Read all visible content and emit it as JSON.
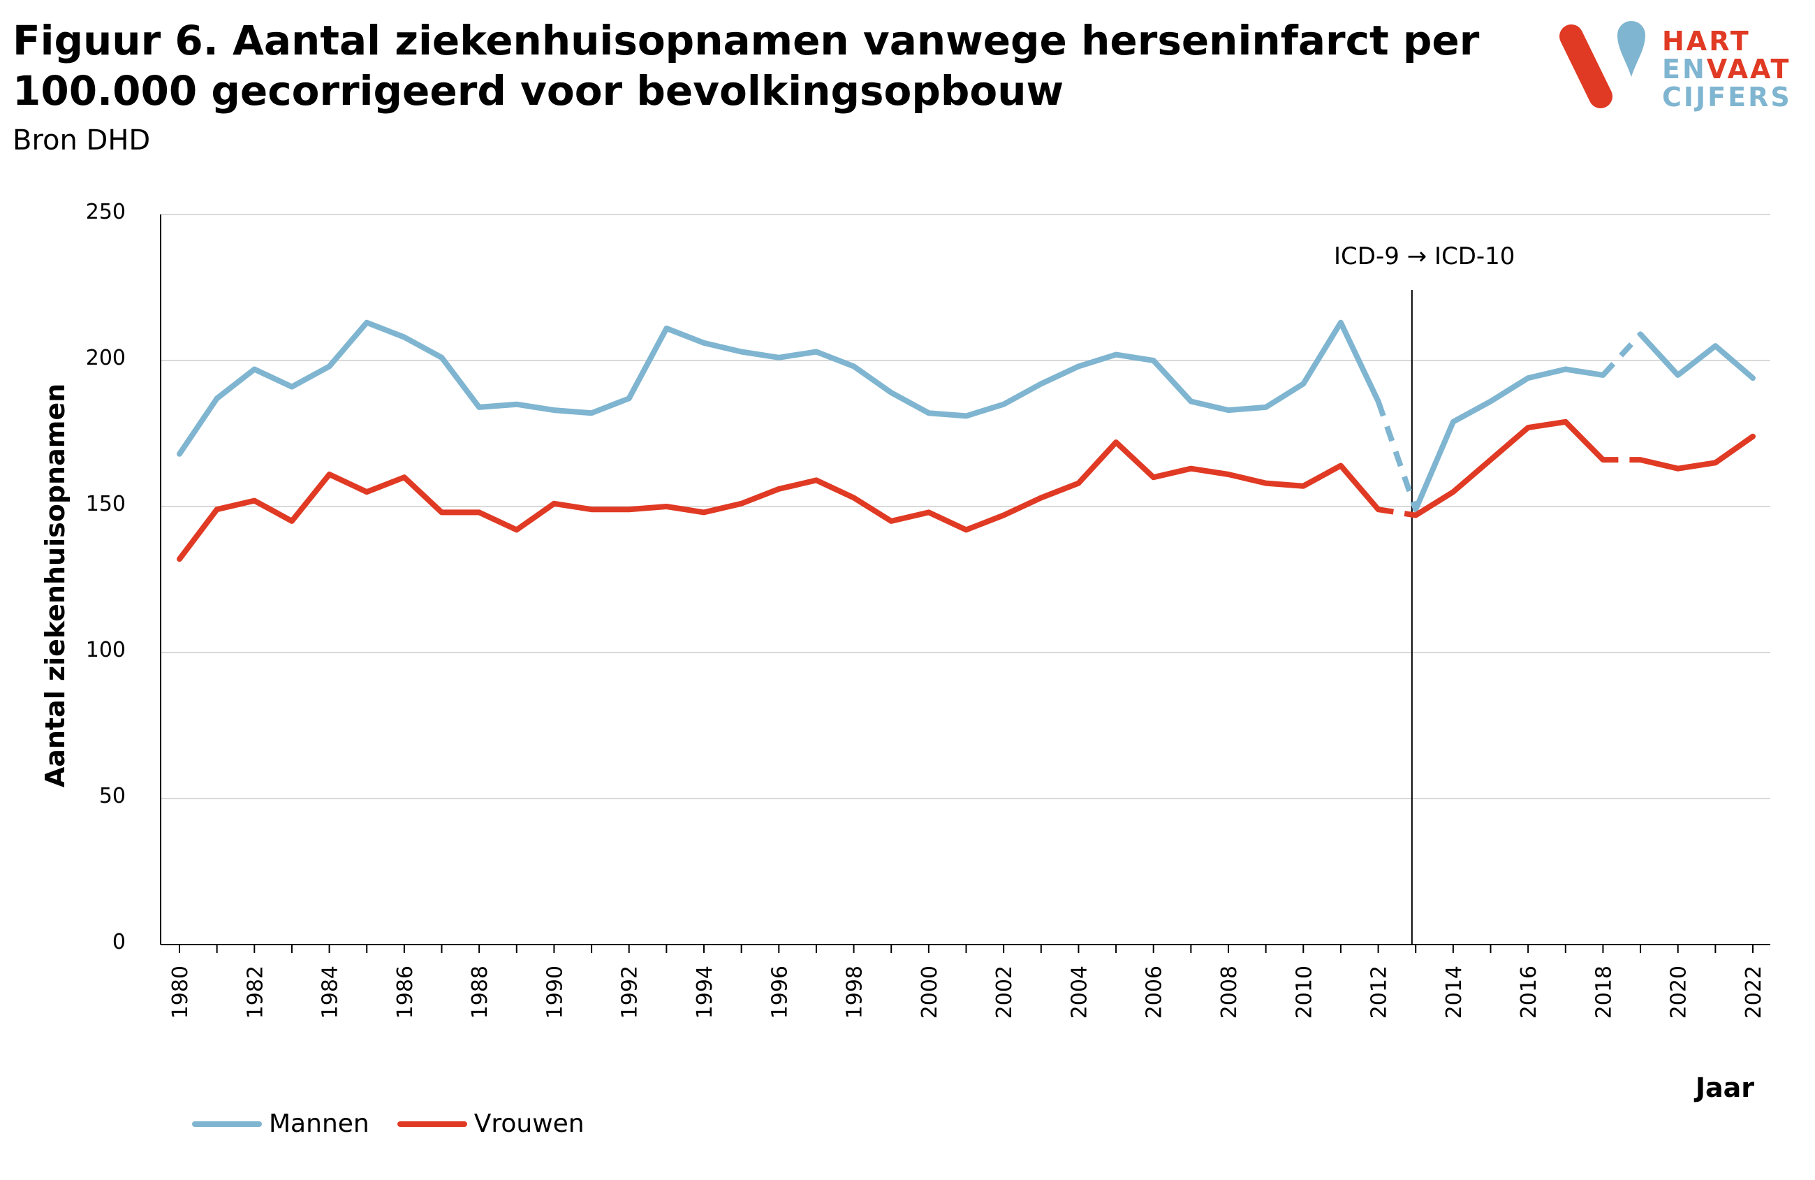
{
  "header": {
    "title": "Figuur 6. Aantal ziekenhuisopnamen vanwege herseninfarct per 100.000 gecorrigeerd voor bevolkingsopbouw",
    "source": "Bron DHD"
  },
  "logo": {
    "line1": "HART",
    "line2a": "EN",
    "line2b": "VAAT",
    "line3": "CIJFERS",
    "color_red": "#e03a24",
    "color_blue": "#7fb5d0"
  },
  "chart_data": {
    "type": "line",
    "title": "Figuur 6. Aantal ziekenhuisopnamen vanwege herseninfarct per 100.000 gecorrigeerd voor bevolkingsopbouw",
    "xlabel": "Jaar",
    "ylabel": "Aantal ziekenhuisopnamen",
    "ylim": [
      0,
      250
    ],
    "yticks": [
      0,
      50,
      100,
      150,
      200,
      250
    ],
    "x": [
      1980,
      1981,
      1982,
      1983,
      1984,
      1985,
      1986,
      1987,
      1988,
      1989,
      1990,
      1991,
      1992,
      1993,
      1994,
      1995,
      1996,
      1997,
      1998,
      1999,
      2000,
      2001,
      2002,
      2003,
      2004,
      2005,
      2006,
      2007,
      2008,
      2009,
      2010,
      2011,
      2012,
      2013,
      2014,
      2015,
      2016,
      2017,
      2018,
      2019,
      2020,
      2021,
      2022
    ],
    "xtick_labels": [
      "1980",
      "1982",
      "1984",
      "1986",
      "1988",
      "1990",
      "1992",
      "1994",
      "1996",
      "1998",
      "2000",
      "2002",
      "2004",
      "2006",
      "2008",
      "2010",
      "2012",
      "2014",
      "2016",
      "2018",
      "2020",
      "2022"
    ],
    "grid": true,
    "legend_position": "bottom-left",
    "annotation": {
      "text": "ICD-9 → ICD-10",
      "x": 2012.9
    },
    "dashed_segments_note": "",
    "series": [
      {
        "name": "Mannen",
        "color": "#7fb5d0",
        "values": [
          168,
          187,
          197,
          191,
          198,
          213,
          208,
          201,
          184,
          185,
          183,
          182,
          187,
          211,
          206,
          203,
          201,
          203,
          198,
          189,
          182,
          181,
          185,
          192,
          198,
          202,
          200,
          186,
          183,
          184,
          192,
          213,
          186,
          149,
          179,
          186,
          194,
          197,
          195,
          209,
          195,
          205,
          194
        ],
        "dashed_intervals": [
          [
            2012,
            2013
          ],
          [
            2018,
            2019
          ]
        ]
      },
      {
        "name": "Vrouwen",
        "color": "#e03a24",
        "values": [
          132,
          149,
          152,
          145,
          161,
          155,
          160,
          148,
          148,
          142,
          151,
          149,
          149,
          150,
          148,
          151,
          156,
          159,
          153,
          145,
          148,
          142,
          147,
          153,
          158,
          172,
          160,
          163,
          161,
          158,
          157,
          164,
          149,
          147,
          155,
          166,
          177,
          179,
          166,
          166,
          163,
          165,
          174
        ],
        "dashed_intervals": [
          [
            2012,
            2013
          ],
          [
            2018,
            2019
          ]
        ]
      }
    ]
  }
}
